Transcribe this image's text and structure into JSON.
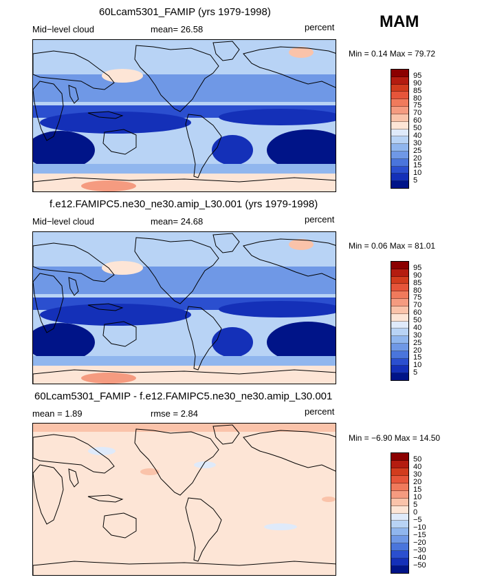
{
  "season": "MAM",
  "panels": [
    {
      "title": "60Lcam5301_FAMIP (yrs 1979-1998)",
      "left_label": "Mid−level cloud",
      "center_label": "mean=  26.58",
      "right_label": "percent",
      "minmax": "Min =   0.14 Max =  79.72",
      "colorbar_levels": [
        "95",
        "90",
        "85",
        "80",
        "75",
        "70",
        "60",
        "50",
        "40",
        "30",
        "25",
        "20",
        "15",
        "10",
        "5"
      ],
      "colors": [
        "#8b0000",
        "#b41c10",
        "#d23c1e",
        "#e6553a",
        "#f07a5c",
        "#f59b80",
        "#fac3aa",
        "#fde5d6",
        "#dfeafa",
        "#b8d3f5",
        "#90b6ee",
        "#6f98e6",
        "#4a75dc",
        "#2b4fcf",
        "#1430b8",
        "#001488"
      ],
      "map_style": "cloud"
    },
    {
      "title": "f.e12.FAMIPC5.ne30_ne30.amip_L30.001 (yrs 1979-1998)",
      "left_label": "Mid−level cloud",
      "center_label": "mean=  24.68",
      "right_label": "percent",
      "minmax": "Min =   0.06 Max =  81.01",
      "colorbar_levels": [
        "95",
        "90",
        "85",
        "80",
        "75",
        "70",
        "60",
        "50",
        "40",
        "30",
        "25",
        "20",
        "15",
        "10",
        "5"
      ],
      "colors": [
        "#8b0000",
        "#b41c10",
        "#d23c1e",
        "#e6553a",
        "#f07a5c",
        "#f59b80",
        "#fac3aa",
        "#fde5d6",
        "#dfeafa",
        "#b8d3f5",
        "#90b6ee",
        "#6f98e6",
        "#4a75dc",
        "#2b4fcf",
        "#1430b8",
        "#001488"
      ],
      "map_style": "cloud"
    },
    {
      "title": "60Lcam5301_FAMIP - f.e12.FAMIPC5.ne30_ne30.amip_L30.001",
      "left_label": "mean =    1.89",
      "center_label": "rmse =    2.84",
      "right_label": "percent",
      "minmax": "Min =  −6.90 Max =  14.50",
      "colorbar_levels": [
        "50",
        "40",
        "30",
        "20",
        "15",
        "10",
        "5",
        "0",
        "−5",
        "−10",
        "−15",
        "−20",
        "−30",
        "−40",
        "−50"
      ],
      "colors": [
        "#8b0000",
        "#b41c10",
        "#d23c1e",
        "#e6553a",
        "#f07a5c",
        "#f59b80",
        "#fac3aa",
        "#fde5d6",
        "#dfeafa",
        "#b8d3f5",
        "#90b6ee",
        "#6f98e6",
        "#4a75dc",
        "#2b4fcf",
        "#1430b8",
        "#001488"
      ],
      "map_style": "diff"
    }
  ]
}
